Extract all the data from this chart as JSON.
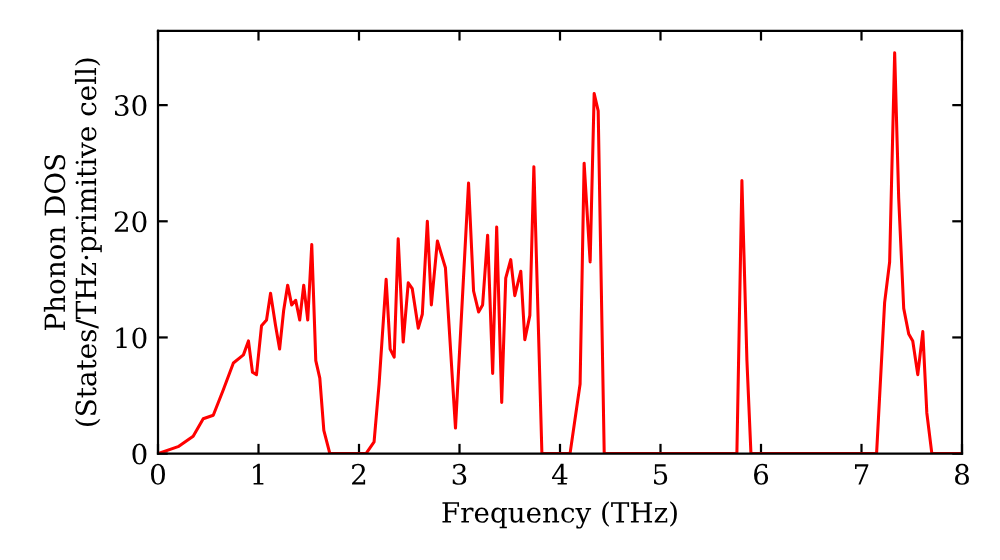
{
  "chart_data": {
    "type": "line",
    "xlabel": "Frequency (THz)",
    "ylabel": "Phonon DOS\n(States/THz·primitive cell)",
    "x": [
      0,
      0.2,
      0.35,
      0.45,
      0.55,
      0.65,
      0.75,
      0.85,
      0.9,
      0.94,
      0.98,
      1.03,
      1.08,
      1.12,
      1.17,
      1.21,
      1.25,
      1.29,
      1.33,
      1.37,
      1.41,
      1.45,
      1.49,
      1.53,
      1.57,
      1.61,
      1.65,
      1.71,
      1.77,
      2.07,
      2.15,
      2.2,
      2.27,
      2.31,
      2.35,
      2.39,
      2.44,
      2.49,
      2.53,
      2.59,
      2.63,
      2.68,
      2.72,
      2.78,
      2.86,
      2.96,
      3.09,
      3.14,
      3.19,
      3.23,
      3.28,
      3.33,
      3.37,
      3.42,
      3.46,
      3.51,
      3.55,
      3.61,
      3.65,
      3.7,
      3.74,
      3.82,
      4.1,
      4.2,
      4.24,
      4.3,
      4.34,
      4.38,
      4.44,
      5.76,
      5.81,
      5.86,
      5.9,
      7.15,
      7.23,
      7.28,
      7.33,
      7.37,
      7.42,
      7.47,
      7.51,
      7.56,
      7.61,
      7.65,
      7.7,
      8.0
    ],
    "series": [
      {
        "color": "#ff0000",
        "values": [
          0,
          0.6,
          1.5,
          3,
          3.3,
          5.5,
          7.8,
          8.5,
          9.7,
          7,
          6.8,
          11,
          11.5,
          13.8,
          11,
          9,
          12.3,
          14.5,
          12.8,
          13.2,
          11.5,
          14.5,
          11.5,
          18,
          8,
          6.5,
          2,
          0,
          0,
          0,
          1,
          6,
          15,
          9,
          8.3,
          18.5,
          9.6,
          14.7,
          14.2,
          10.8,
          12,
          20,
          12.8,
          18.3,
          16,
          2.2,
          23.3,
          14,
          12.2,
          12.8,
          18.8,
          6.9,
          19.5,
          4.4,
          15.1,
          16.7,
          13.6,
          15.7,
          9.8,
          11.9,
          24.7,
          0,
          0,
          6,
          25,
          16.5,
          31,
          29.5,
          0,
          0,
          23.5,
          8,
          0,
          0,
          13,
          16.5,
          34.5,
          22,
          12.5,
          10.3,
          9.7,
          6.8,
          10.5,
          3.5,
          0,
          0
        ]
      }
    ],
    "xlim": [
      0,
      8
    ],
    "ylim": [
      0,
      36.4
    ],
    "xticks": [
      0,
      1,
      2,
      3,
      4,
      5,
      6,
      7,
      8
    ],
    "yticks": [
      0,
      10,
      20,
      30
    ],
    "grid": false,
    "legend": false,
    "marker": "none",
    "line_style": "solid"
  }
}
